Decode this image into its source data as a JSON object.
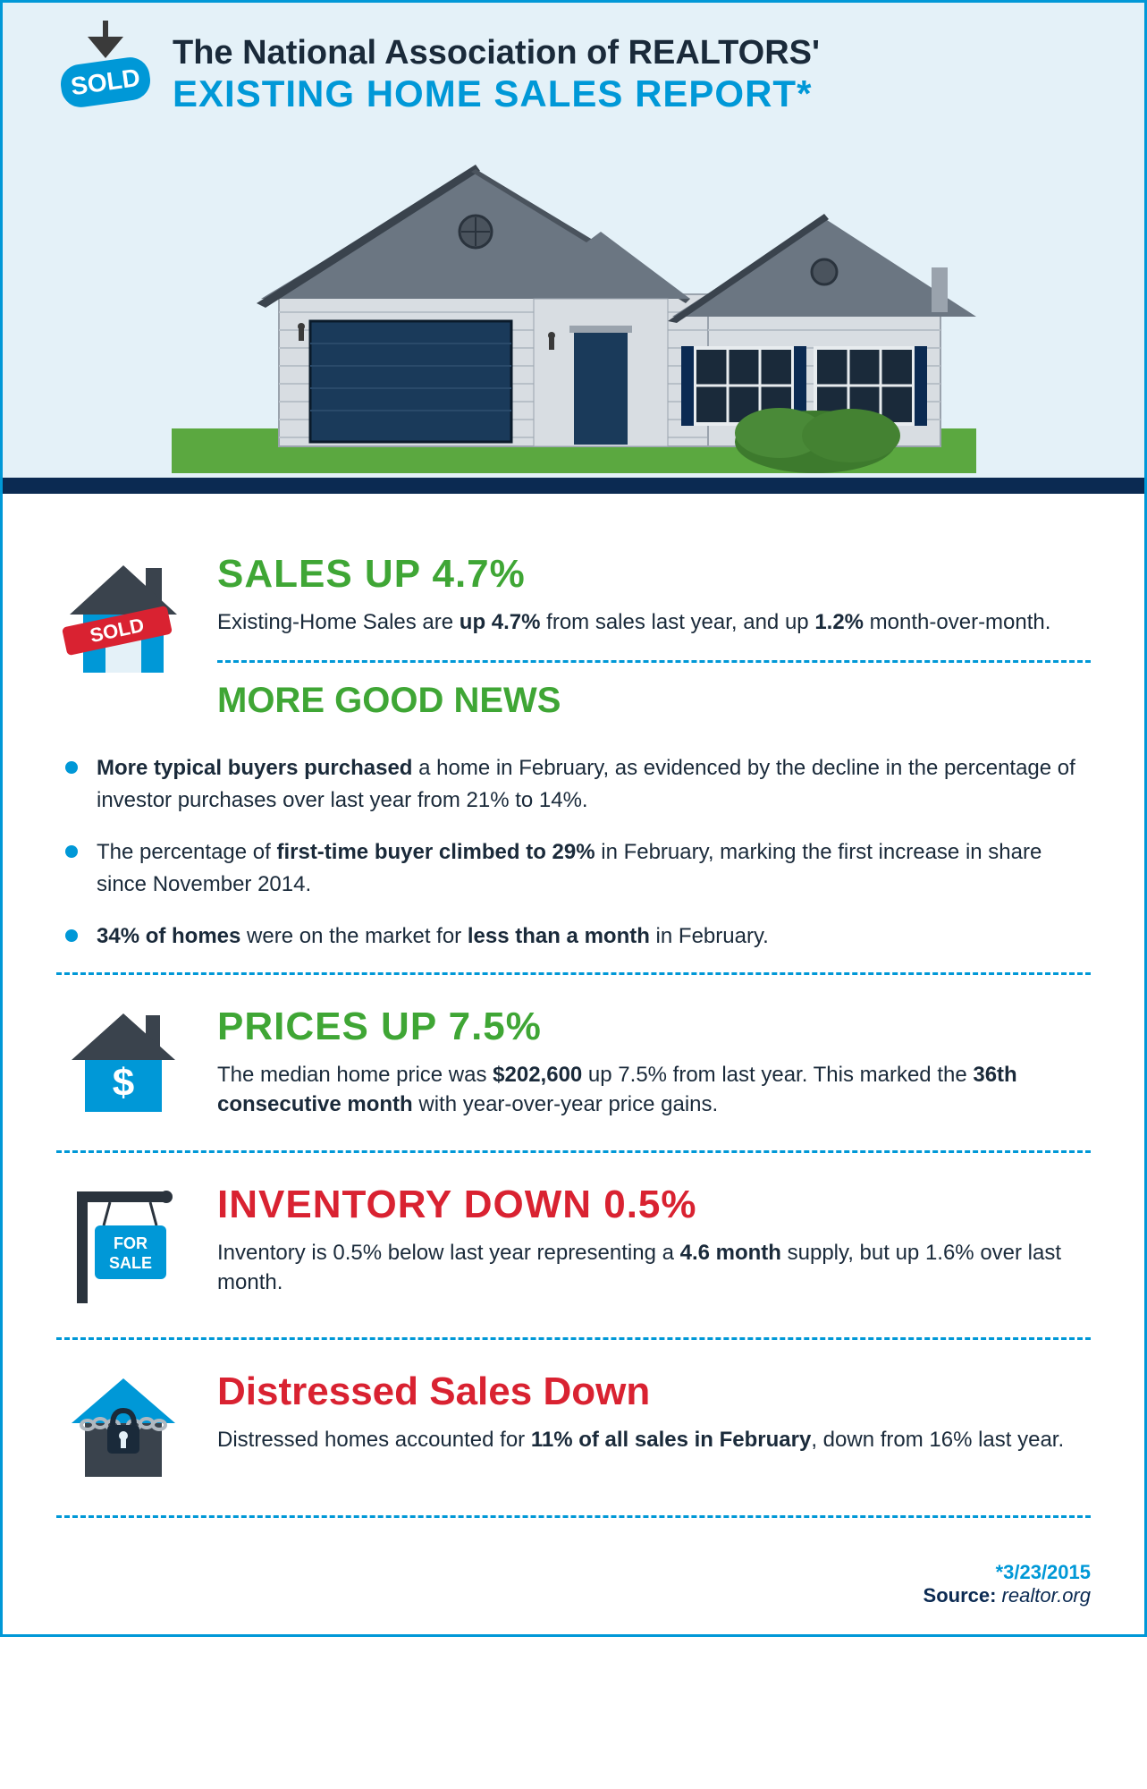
{
  "colors": {
    "border": "#0098d7",
    "sky": "#e4f1f8",
    "navy": "#0b2a52",
    "grass": "#5ba840",
    "green": "#3fa635",
    "red": "#d92231",
    "text": "#1a2a3a"
  },
  "header": {
    "sold_label": "SOLD",
    "title_line1": "The National Association of REALTORS'",
    "title_line2": "EXISTING HOME SALES REPORT*"
  },
  "sections": {
    "sales": {
      "headline": "SALES UP 4.7%",
      "desc_html": "Existing-Home Sales are <b>up 4.7%</b> from sales last year, and up <b>1.2%</b> month-over-month."
    },
    "goodnews": {
      "subhead": "MORE GOOD NEWS",
      "bullets": [
        "<b>More typical buyers purchased</b> a home in February, as evidenced by the decline in the percentage of investor purchases over last year from 21% to 14%.",
        "The percentage of <b>first-time buyer climbed to 29%</b> in February, marking the first increase in share since November 2014.",
        "<b>34% of homes</b> were on the market for <b>less than a month</b> in February."
      ]
    },
    "prices": {
      "headline": "PRICES UP 7.5%",
      "desc_html": "The median home price was <b>$202,600</b> up 7.5% from last year. This marked the <b>36th consecutive month</b> with year-over-year price gains."
    },
    "inventory": {
      "headline": "INVENTORY DOWN 0.5%",
      "desc_html": "Inventory is 0.5% below last year representing a <b>4.6 month</b> supply, but up 1.6% over last month."
    },
    "distressed": {
      "headline": "Distressed Sales Down",
      "desc_html": "Distressed homes accounted for <b>11% of all sales in February</b>, down from 16% last year."
    }
  },
  "footer": {
    "date": "*3/23/2015",
    "source_label": "Source: ",
    "source_value": "realtor.org"
  }
}
